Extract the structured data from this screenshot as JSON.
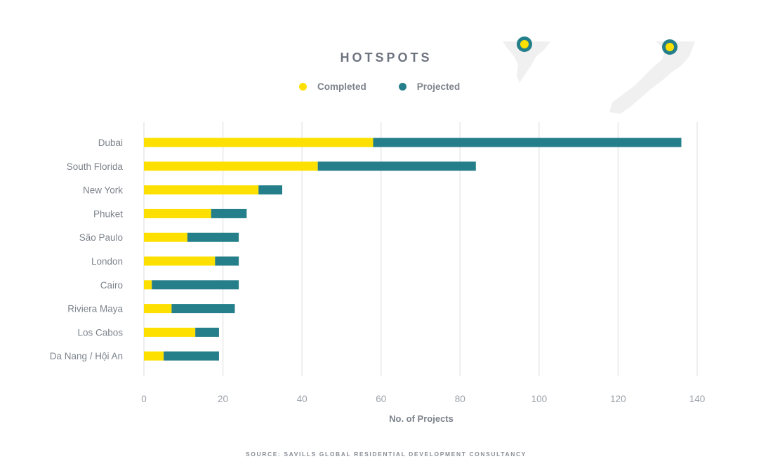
{
  "title": "HOTSPOTS",
  "source": "SOURCE: SAVILLS GLOBAL RESIDENTIAL DEVELOPMENT CONSULTANCY",
  "colors": {
    "completed": "#fde000",
    "projected": "#247f8a",
    "grid": "#e8e8e8",
    "map": "#f0f0f0"
  },
  "chart_data": {
    "type": "bar",
    "orientation": "horizontal",
    "stacked": true,
    "title": "HOTSPOTS",
    "xlabel": "No. of Projects",
    "ylabel": "",
    "xlim": [
      0,
      140
    ],
    "xticks": [
      0,
      20,
      40,
      60,
      80,
      100,
      120,
      140
    ],
    "grid": true,
    "legend": "top-center",
    "categories": [
      "Dubai",
      "South Florida",
      "New York",
      "Phuket",
      "São Paulo",
      "London",
      "Cairo",
      "Riviera Maya",
      "Los Cabos",
      "Da Nang / Hội An"
    ],
    "series": [
      {
        "name": "Completed",
        "color": "#fde000",
        "values": [
          58,
          44,
          29,
          17,
          11,
          18,
          2,
          7,
          13,
          5
        ]
      },
      {
        "name": "Projected",
        "color": "#247f8a",
        "values": [
          78,
          40,
          6,
          9,
          13,
          6,
          22,
          16,
          6,
          14
        ]
      }
    ]
  }
}
